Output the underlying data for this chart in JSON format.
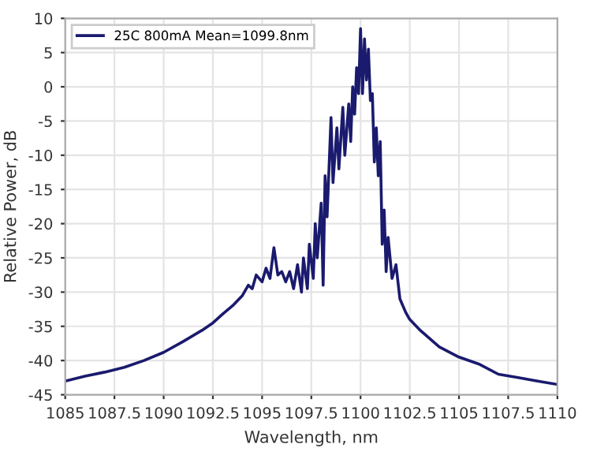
{
  "chart_data": {
    "type": "line",
    "xlabel": "Wavelength, nm",
    "ylabel": "Relative Power, dB",
    "xlim": [
      1085,
      1110
    ],
    "ylim": [
      -45,
      10
    ],
    "xticks": [
      1085,
      1087.5,
      1090,
      1092.5,
      1095,
      1097.5,
      1100,
      1102.5,
      1105,
      1107.5,
      1110
    ],
    "yticks": [
      -45,
      -40,
      -35,
      -30,
      -25,
      -20,
      -15,
      -10,
      -5,
      0,
      5,
      10
    ],
    "grid": true,
    "legend": "top left",
    "marker": "none",
    "line_style": "solid",
    "series": [
      {
        "name": "25C 800mA Mean=1099.8nm",
        "color": "#1a1a6e",
        "x": [
          1085,
          1086,
          1087,
          1088,
          1089,
          1090,
          1091,
          1092,
          1092.5,
          1093,
          1093.5,
          1094,
          1094.3,
          1094.5,
          1094.7,
          1095,
          1095.2,
          1095.4,
          1095.6,
          1095.8,
          1096,
          1096.2,
          1096.4,
          1096.6,
          1096.8,
          1097,
          1097.1,
          1097.3,
          1097.4,
          1097.6,
          1097.7,
          1097.8,
          1098,
          1098.1,
          1098.2,
          1098.3,
          1098.5,
          1098.6,
          1098.8,
          1098.9,
          1099.1,
          1099.2,
          1099.4,
          1099.5,
          1099.6,
          1099.7,
          1099.8,
          1099.9,
          1100,
          1100.1,
          1100.2,
          1100.3,
          1100.4,
          1100.5,
          1100.6,
          1100.7,
          1100.8,
          1100.9,
          1101,
          1101.1,
          1101.2,
          1101.3,
          1101.4,
          1101.6,
          1101.8,
          1102,
          1102.3,
          1102.5,
          1103,
          1104,
          1105,
          1106,
          1107,
          1108,
          1109,
          1110
        ],
        "values": [
          -43,
          -42.3,
          -41.7,
          -41,
          -40,
          -38.8,
          -37.2,
          -35.5,
          -34.5,
          -33.2,
          -32,
          -30.5,
          -29,
          -29.5,
          -27.5,
          -28.5,
          -26.5,
          -28,
          -23.5,
          -27.5,
          -27,
          -28.5,
          -27,
          -29.5,
          -26,
          -30,
          -25,
          -29.5,
          -23,
          -28,
          -20,
          -25,
          -17,
          -29,
          -13,
          -19,
          -4.5,
          -14,
          -6,
          -12,
          -3,
          -10,
          -2.5,
          -8,
          0,
          -4,
          2.8,
          -1,
          8.5,
          -1,
          7,
          1,
          5.5,
          -2,
          -1,
          -11,
          -6,
          -13,
          -8,
          -23,
          -18,
          -27,
          -22,
          -28,
          -26,
          -31,
          -33,
          -34,
          -35.5,
          -38,
          -39.5,
          -40.5,
          -42,
          -42.5,
          -43,
          -43.5
        ]
      }
    ]
  }
}
